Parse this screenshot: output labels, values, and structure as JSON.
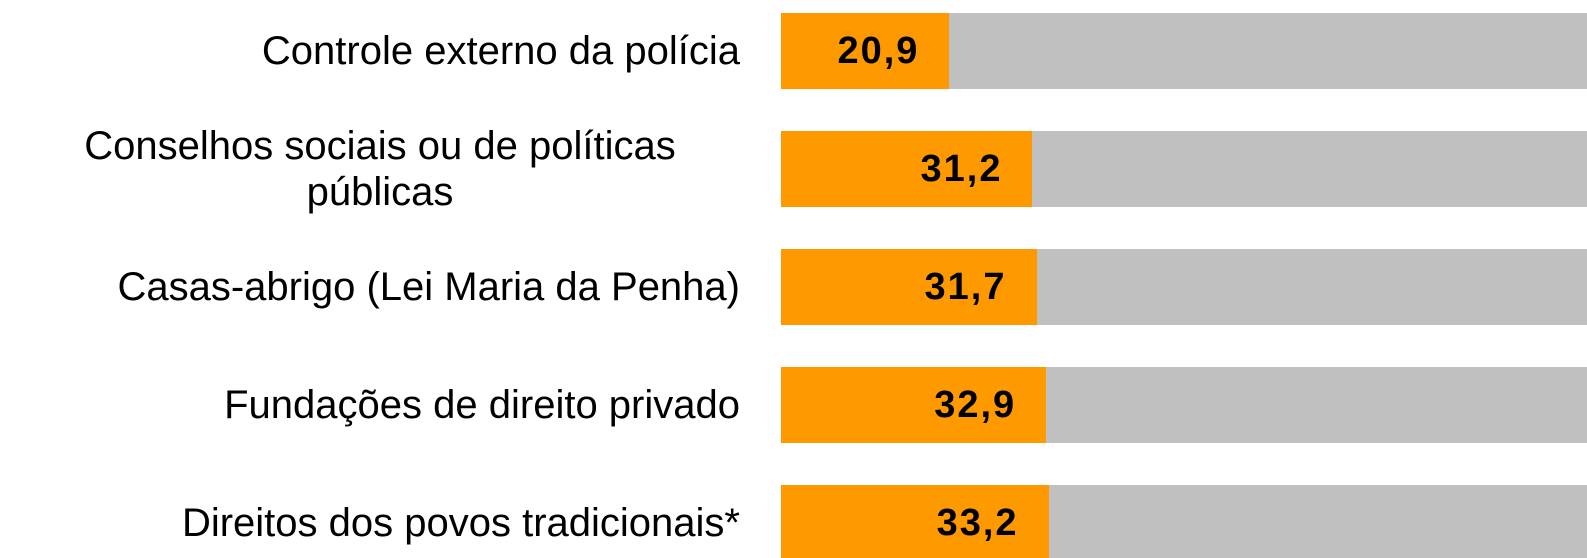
{
  "chart_data": {
    "type": "bar",
    "orientation": "horizontal",
    "categories": [
      "Controle externo da polícia",
      "Conselhos sociais ou de políticas públicas",
      "Casas-abrigo (Lei Maria da Penha)",
      "Fundações de direito privado",
      "Direitos dos povos tradicionais*"
    ],
    "values": [
      20.9,
      31.2,
      31.7,
      32.9,
      33.2
    ],
    "value_labels": [
      "20,9",
      "31,2",
      "31,7",
      "32,9",
      "33,2"
    ],
    "color": "#ff9900",
    "track_color": "#c0c0c0",
    "xlim": [
      0,
      100
    ]
  }
}
